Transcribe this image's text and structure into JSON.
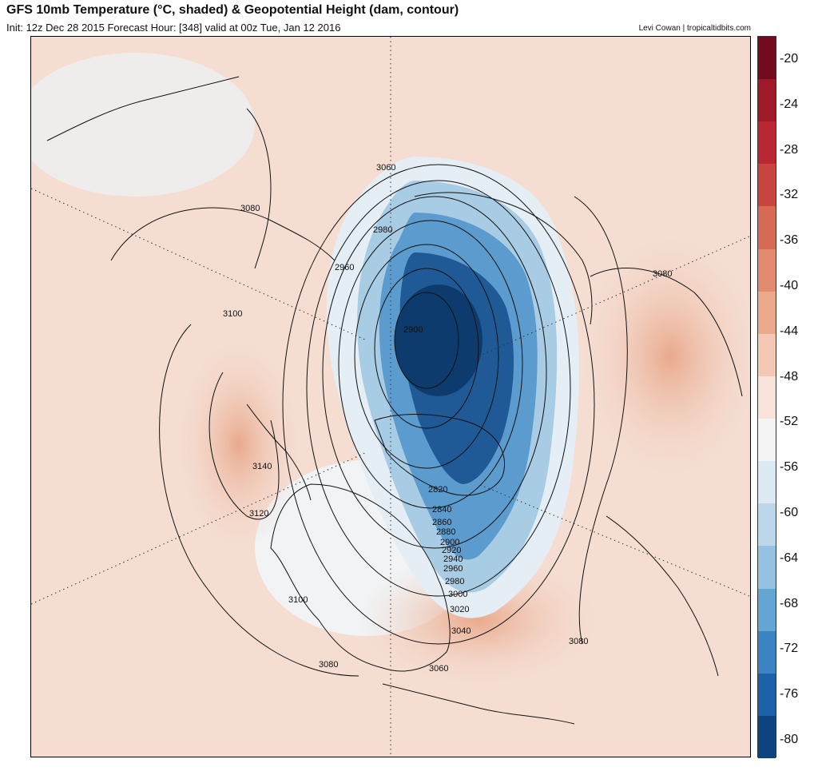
{
  "header": {
    "title": "GFS 10mb Temperature (°C, shaded) & Geopotential Height (dam, contour)",
    "subtitle": "Init: 12z Dec 28 2015   Forecast Hour: [348]   valid at 00z Tue, Jan 12 2016",
    "credit": "Levi Cowan | tropicaltidbits.com"
  },
  "colorbar": {
    "labels": [
      "-20",
      "-24",
      "-28",
      "-32",
      "-36",
      "-40",
      "-44",
      "-48",
      "-52",
      "-56",
      "-60",
      "-64",
      "-68",
      "-72",
      "-76",
      "-80"
    ],
    "colors": [
      "#730b1f",
      "#9e1a2a",
      "#b92733",
      "#c9443f",
      "#d66a55",
      "#e28b70",
      "#ecaa8c",
      "#f3c8b4",
      "#f7e3da",
      "#f4f4f4",
      "#dbe9f2",
      "#bcd7ea",
      "#95c2e0",
      "#64a5d2",
      "#3b83c1",
      "#1d62a8",
      "#0d447f"
    ]
  },
  "map": {
    "contour_labels": [
      "3060",
      "3080",
      "2980",
      "2960",
      "3100",
      "3080",
      "2900",
      "3140",
      "3120",
      "2820",
      "2840",
      "2860",
      "2880",
      "2900",
      "2920",
      "2940",
      "2960",
      "2980",
      "3000",
      "3020",
      "3040",
      "3100",
      "3080",
      "3060",
      "3080"
    ]
  }
}
